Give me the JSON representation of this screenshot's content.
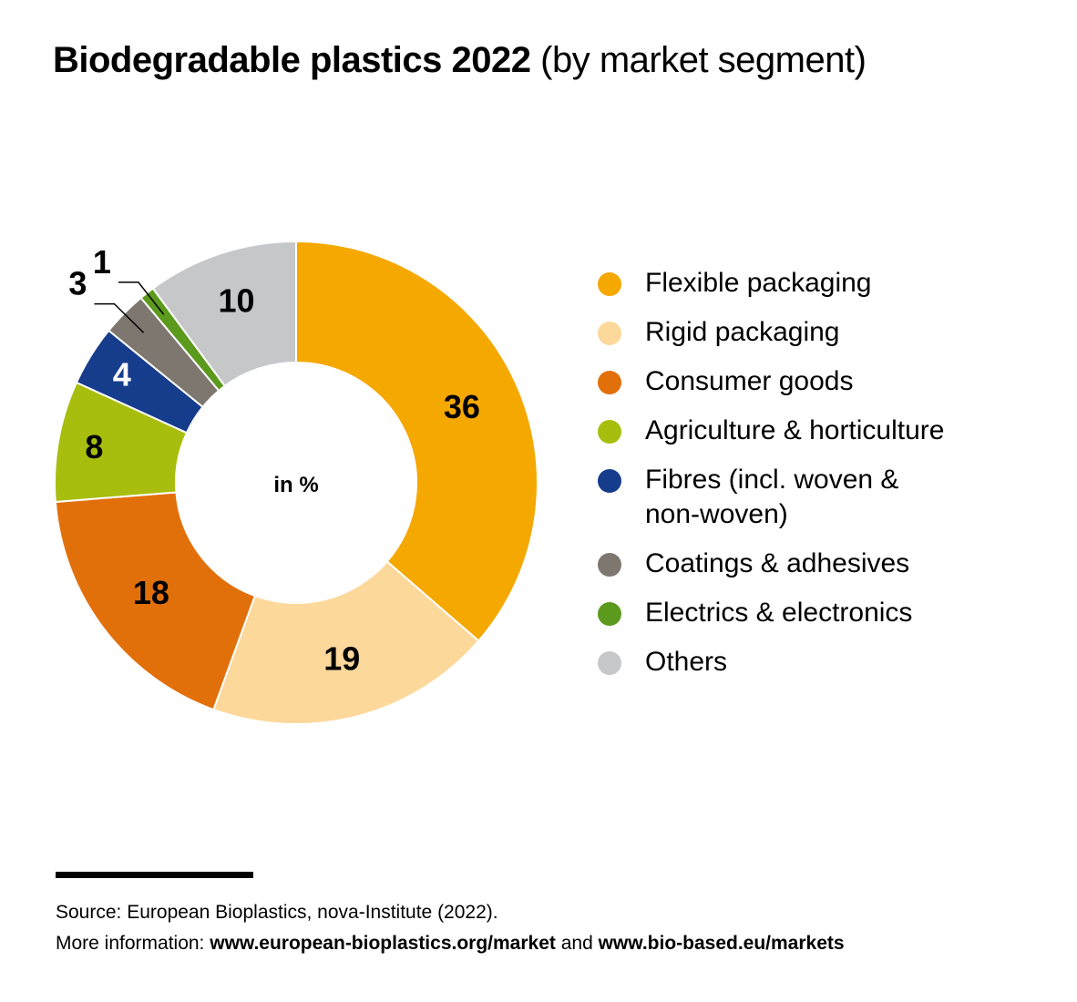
{
  "title": {
    "bold": "Biodegradable plastics 2022",
    "regular": "(by market segment)"
  },
  "chart_data": {
    "type": "pie",
    "style": "donut",
    "center_label": "in %",
    "categories": [
      "Flexible packaging",
      "Rigid packaging",
      "Consumer goods",
      "Agriculture & horticulture",
      "Fibres (incl. woven & non-woven)",
      "Coatings & adhesives",
      "Electrics & electronics",
      "Others"
    ],
    "values": [
      36,
      19,
      18,
      8,
      4,
      3,
      1,
      10
    ],
    "colors": [
      "#F5A800",
      "#FDD89B",
      "#E2700A",
      "#A7BE0E",
      "#163C8C",
      "#7E7770",
      "#5C9A1E",
      "#C6C7C9"
    ],
    "label_colors": [
      "#000000",
      "#000000",
      "#000000",
      "#000000",
      "#ffffff",
      "#000000",
      "#000000",
      "#000000"
    ],
    "legend_placement": "right"
  },
  "legend": [
    {
      "label": "Flexible packaging",
      "color": "#F5A800"
    },
    {
      "label": "Rigid packaging",
      "color": "#FDD89B"
    },
    {
      "label": "Consumer goods",
      "color": "#E2700A"
    },
    {
      "label": "Agriculture & horticulture",
      "color": "#A7BE0E"
    },
    {
      "label_line1": "Fibres (incl. woven &",
      "label_line2": "non-woven)",
      "color": "#163C8C"
    },
    {
      "label": "Coatings & adhesives",
      "color": "#7E7770"
    },
    {
      "label": "Electrics & electronics",
      "color": "#5C9A1E"
    },
    {
      "label": "Others",
      "color": "#C6C7C9"
    }
  ],
  "footer": {
    "source": "Source: European Bioplastics, nova-Institute (2022).",
    "more_info_prefix": "More information: ",
    "link1": "www.european-bioplastics.org/market",
    "connector": " and ",
    "link2": "www.bio-based.eu/markets"
  }
}
